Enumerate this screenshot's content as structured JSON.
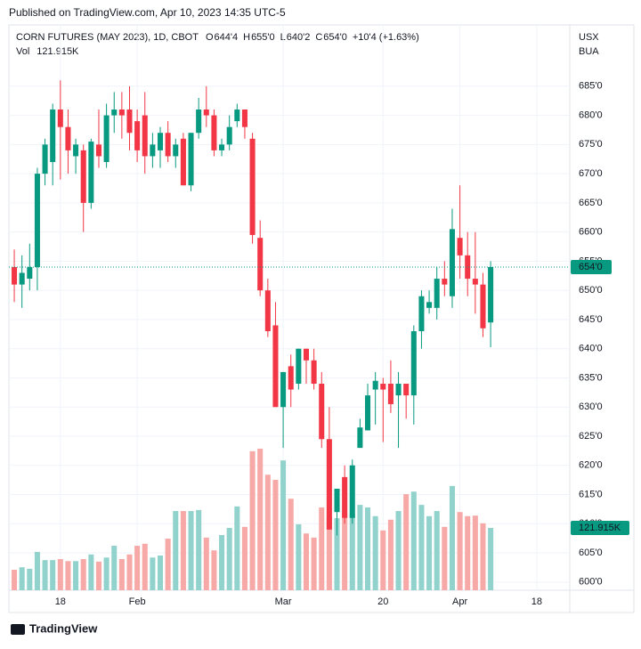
{
  "published": "Published on TradingView.com, Apr 10, 2023 14:35 UTC-5",
  "footer": "TradingView",
  "chart_data": {
    "type": "candlestick",
    "title": "CORN FUTURES (MAY 2023), 1D, CBOT",
    "ohlc_labels": [
      {
        "key": "O",
        "value": "644'4"
      },
      {
        "key": "H",
        "value": "655'0"
      },
      {
        "key": "L",
        "value": "640'2"
      },
      {
        "key": "C",
        "value": "654'0"
      }
    ],
    "change_label": "+10'4 (+1.63%)",
    "volume_name": "Vol",
    "volume_last_label": "121.915K",
    "last_price_label": "654'0",
    "currency": "USX",
    "unit": "BUA",
    "open": [
      654,
      651,
      652,
      654,
      670,
      672,
      681,
      678,
      673,
      674,
      665,
      675,
      672,
      680,
      681,
      681,
      679,
      680,
      673,
      674,
      677,
      673,
      676,
      668,
      677,
      681,
      680,
      674,
      675,
      679,
      681,
      676,
      659,
      650,
      644,
      630,
      637,
      634,
      640,
      638,
      634,
      624.5,
      612,
      618,
      611,
      623,
      626,
      633,
      634,
      634,
      632,
      634,
      632,
      643,
      647,
      647,
      652,
      649,
      659,
      656,
      652,
      651,
      644.5
    ],
    "high": [
      657,
      656,
      658,
      671,
      676,
      682,
      686,
      681,
      676,
      675,
      676,
      681,
      682,
      684,
      684,
      685,
      681,
      684,
      677,
      678,
      679,
      676,
      677,
      677,
      683,
      685,
      681,
      676,
      680,
      682,
      681,
      677,
      662,
      652,
      648,
      636,
      639,
      640,
      640,
      640,
      636,
      630,
      616,
      620,
      621,
      628,
      634,
      636,
      635,
      638,
      636,
      634,
      644,
      650,
      650,
      654,
      655,
      664,
      668,
      660,
      660,
      653,
      655
    ],
    "low": [
      648,
      647,
      650,
      650,
      668,
      668,
      669,
      670,
      670,
      660,
      664,
      671,
      671,
      677,
      676,
      674,
      672,
      670,
      671,
      671,
      672,
      671,
      668,
      667,
      676,
      678,
      673,
      673,
      674,
      678,
      676,
      658,
      649,
      642,
      630,
      623,
      630,
      633,
      634,
      633,
      623,
      609,
      608,
      610,
      610,
      623,
      626,
      627,
      624,
      629,
      623,
      628,
      627,
      640,
      646,
      645,
      649,
      647,
      652,
      649,
      646,
      642,
      640.25
    ],
    "close": [
      651,
      653,
      654,
      670,
      675,
      681,
      678,
      674,
      675,
      665,
      675.5,
      673,
      680,
      681,
      680,
      677,
      674,
      673,
      675,
      677,
      673,
      675,
      668,
      677,
      681,
      680,
      674,
      675,
      678,
      681,
      678,
      659.5,
      650,
      643,
      630,
      636,
      633,
      640,
      638,
      634,
      624.5,
      609,
      616,
      611,
      620,
      626.5,
      632,
      634.5,
      633,
      630.5,
      634,
      632,
      643,
      649,
      648,
      652,
      651,
      660.5,
      656,
      652,
      651,
      643.5,
      654
    ],
    "volume": [
      40000,
      45000,
      42000,
      75000,
      59000,
      59000,
      61000,
      57000,
      57000,
      61000,
      70000,
      56000,
      64000,
      87000,
      61000,
      70000,
      87000,
      91000,
      64000,
      68000,
      101000,
      155000,
      155000,
      155000,
      157000,
      103000,
      78000,
      108000,
      122000,
      164000,
      124000,
      272000,
      277000,
      226000,
      216000,
      254000,
      179000,
      129000,
      111000,
      103000,
      162000,
      145000,
      141000,
      152000,
      150000,
      167000,
      162000,
      145000,
      117000,
      138000,
      155000,
      188000,
      193000,
      167000,
      145000,
      155000,
      124000,
      204000,
      153000,
      145000,
      146000,
      131000,
      121915
    ],
    "up_color": "#089981",
    "down_color": "#f23645",
    "volume_up_color": "#92d2cc",
    "volume_down_color": "#f7a9a7",
    "xlim": [
      -0.7,
      72.3
    ],
    "xticks": [
      {
        "value": 6,
        "label": "18"
      },
      {
        "value": 16,
        "label": "Feb"
      },
      {
        "value": 35,
        "label": "Mar"
      },
      {
        "value": 48,
        "label": "20"
      },
      {
        "value": 58,
        "label": "Apr"
      },
      {
        "value": 68,
        "label": "18"
      }
    ],
    "ylim": [
      598.6,
      695.5
    ],
    "yticks": [
      {
        "value": 600,
        "label": "600'0"
      },
      {
        "value": 605,
        "label": "605'0"
      },
      {
        "value": 610,
        "label": "610'0"
      },
      {
        "value": 615,
        "label": "615'0"
      },
      {
        "value": 620,
        "label": "620'0"
      },
      {
        "value": 625,
        "label": "625'0"
      },
      {
        "value": 630,
        "label": "630'0"
      },
      {
        "value": 635,
        "label": "635'0"
      },
      {
        "value": 640,
        "label": "640'0"
      },
      {
        "value": 645,
        "label": "645'0"
      },
      {
        "value": 650,
        "label": "650'0"
      },
      {
        "value": 655,
        "label": "655'0"
      },
      {
        "value": 660,
        "label": "660'0"
      },
      {
        "value": 665,
        "label": "665'0"
      },
      {
        "value": 670,
        "label": "670'0"
      },
      {
        "value": 675,
        "label": "675'0"
      },
      {
        "value": 680,
        "label": "680'0"
      },
      {
        "value": 685,
        "label": "685'0"
      }
    ],
    "volume_ylim": [
      0,
      1106000
    ],
    "grid": true
  }
}
